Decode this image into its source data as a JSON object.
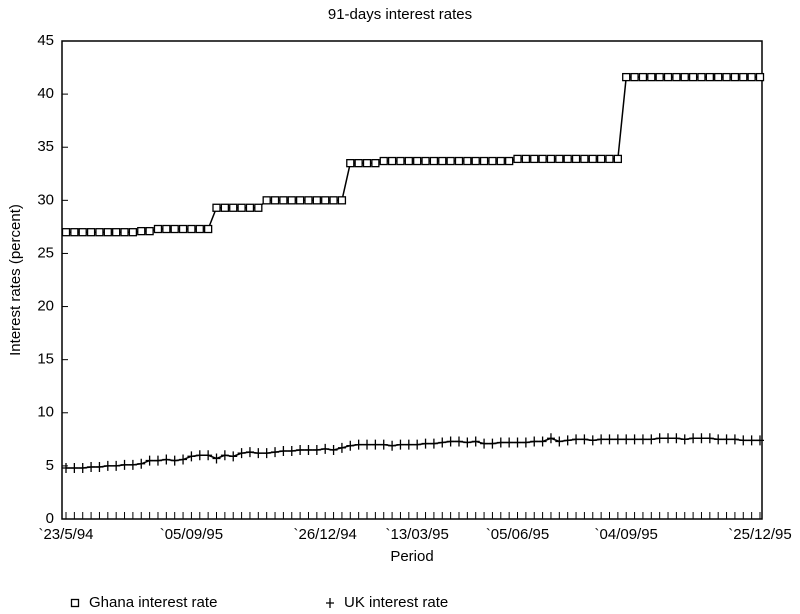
{
  "chart_data": {
    "type": "line",
    "title": "91-days interest rates",
    "xlabel": "Period",
    "ylabel": "Interest rates (percent)",
    "categories": [
      "`23/5/94",
      null,
      null,
      null,
      null,
      null,
      null,
      null,
      null,
      null,
      null,
      null,
      null,
      null,
      null,
      "`05/09/95",
      null,
      null,
      null,
      null,
      null,
      null,
      null,
      null,
      null,
      null,
      null,
      null,
      null,
      null,
      null,
      "`26/12/94",
      null,
      null,
      null,
      null,
      null,
      null,
      null,
      null,
      null,
      null,
      "`13/03/95",
      null,
      null,
      null,
      null,
      null,
      null,
      null,
      null,
      null,
      null,
      null,
      "`05/06/95",
      null,
      null,
      null,
      null,
      null,
      null,
      null,
      null,
      null,
      null,
      null,
      null,
      "`04/09/95",
      null,
      null,
      null,
      null,
      null,
      null,
      null,
      null,
      null,
      null,
      null,
      null,
      null,
      null,
      null,
      "`25/12/95"
    ],
    "series": [
      {
        "name": "Ghana interest rate",
        "color": "#000000",
        "marker": "square",
        "values": [
          27,
          27,
          27,
          27,
          27,
          27,
          27,
          27,
          27,
          27.1,
          27.1,
          27.3,
          27.3,
          27.3,
          27.3,
          27.3,
          27.3,
          27.3,
          29.3,
          29.3,
          29.3,
          29.3,
          29.3,
          29.3,
          30,
          30,
          30,
          30,
          30,
          30,
          30,
          30,
          30,
          30,
          33.5,
          33.5,
          33.5,
          33.5,
          33.7,
          33.7,
          33.7,
          33.7,
          33.7,
          33.7,
          33.7,
          33.7,
          33.7,
          33.7,
          33.7,
          33.7,
          33.7,
          33.7,
          33.7,
          33.7,
          33.9,
          33.9,
          33.9,
          33.9,
          33.9,
          33.9,
          33.9,
          33.9,
          33.9,
          33.9,
          33.9,
          33.9,
          33.9,
          41.6,
          41.6,
          41.6,
          41.6,
          41.6,
          41.6,
          41.6,
          41.6,
          41.6,
          41.6,
          41.6,
          41.6,
          41.6,
          41.6,
          41.6,
          41.6,
          41.6
        ]
      },
      {
        "name": "UK interest rate",
        "color": "#000000",
        "marker": "plus",
        "values": [
          4.8,
          4.8,
          4.8,
          4.9,
          4.9,
          5.0,
          5.0,
          5.1,
          5.1,
          5.2,
          5.5,
          5.5,
          5.6,
          5.5,
          5.6,
          5.9,
          6.0,
          6.0,
          5.7,
          6.0,
          5.9,
          6.2,
          6.3,
          6.2,
          6.2,
          6.3,
          6.4,
          6.4,
          6.5,
          6.5,
          6.5,
          6.6,
          6.5,
          6.7,
          6.9,
          7.0,
          7.0,
          7.0,
          7.0,
          6.9,
          7.0,
          7.0,
          7.0,
          7.1,
          7.1,
          7.2,
          7.3,
          7.3,
          7.2,
          7.3,
          7.1,
          7.1,
          7.2,
          7.2,
          7.2,
          7.2,
          7.3,
          7.3,
          7.6,
          7.3,
          7.4,
          7.5,
          7.5,
          7.4,
          7.5,
          7.5,
          7.5,
          7.5,
          7.5,
          7.5,
          7.5,
          7.6,
          7.6,
          7.6,
          7.5,
          7.6,
          7.6,
          7.6,
          7.5,
          7.5,
          7.5,
          7.4,
          7.4,
          7.4
        ]
      }
    ],
    "ylim": [
      0,
      45
    ],
    "yticks": [
      0,
      5,
      10,
      15,
      20,
      25,
      30,
      35,
      40,
      45
    ],
    "grid": false
  }
}
